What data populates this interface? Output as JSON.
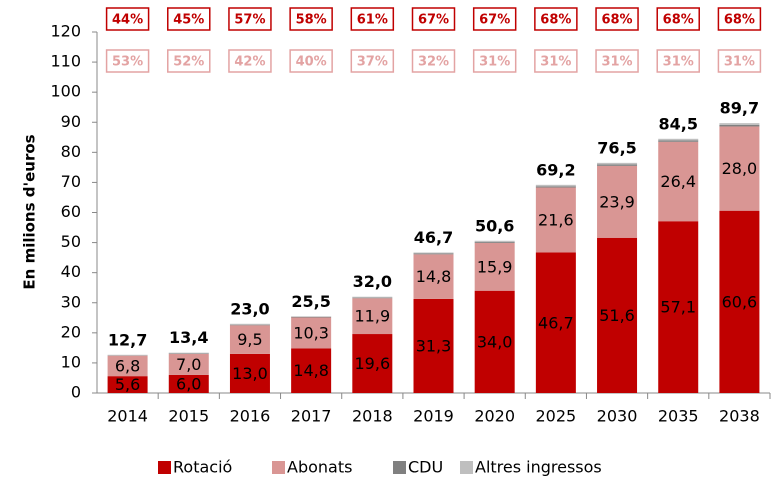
{
  "chart_data": {
    "type": "bar",
    "stacked": true,
    "ylabel": "En milions d'euros",
    "categories": [
      "2014",
      "2015",
      "2016",
      "2017",
      "2018",
      "2019",
      "2020",
      "2025",
      "2030",
      "2035",
      "2038"
    ],
    "series": [
      {
        "name": "Rotació",
        "color": "#c00000",
        "values": [
          5.6,
          6.0,
          13.0,
          14.8,
          19.6,
          31.3,
          34.0,
          46.7,
          51.6,
          57.1,
          60.6
        ],
        "value_labels": [
          "5,6",
          "6,0",
          "13,0",
          "14,8",
          "19,6",
          "31,3",
          "34,0",
          "46,7",
          "51,6",
          "57,1",
          "60,6"
        ]
      },
      {
        "name": "Abonats",
        "color": "#d99694",
        "values": [
          6.8,
          7.0,
          9.5,
          10.3,
          11.9,
          14.8,
          15.9,
          21.6,
          23.9,
          26.4,
          28.0
        ],
        "value_labels": [
          "6,8",
          "7,0",
          "9,5",
          "10,3",
          "11,9",
          "14,8",
          "15,9",
          "21,6",
          "23,9",
          "26,4",
          "28,0"
        ]
      },
      {
        "name": "CDU",
        "color": "#808080",
        "values": [
          0.1,
          0.2,
          0.2,
          0.2,
          0.2,
          0.3,
          0.3,
          0.4,
          0.5,
          0.5,
          0.5
        ]
      },
      {
        "name": "Altres ingressos",
        "color": "#bfbfbf",
        "values": [
          0.2,
          0.2,
          0.3,
          0.2,
          0.3,
          0.3,
          0.4,
          0.5,
          0.5,
          0.5,
          0.6
        ]
      }
    ],
    "totals": [
      12.7,
      13.4,
      23.0,
      25.5,
      32.0,
      46.7,
      50.6,
      69.2,
      76.5,
      84.5,
      89.7
    ],
    "total_labels": [
      "12,7",
      "13,4",
      "23,0",
      "25,5",
      "32,0",
      "46,7",
      "50,6",
      "69,2",
      "76,5",
      "84,5",
      "89,7"
    ],
    "shares": [
      {
        "color": "#c00000",
        "values": [
          44,
          45,
          57,
          58,
          61,
          67,
          67,
          68,
          68,
          68,
          68
        ],
        "value_labels": [
          "44%",
          "45%",
          "57%",
          "58%",
          "61%",
          "67%",
          "67%",
          "68%",
          "68%",
          "68%",
          "68%"
        ]
      },
      {
        "color": "#e3a3a3",
        "values": [
          53,
          52,
          42,
          40,
          37,
          32,
          31,
          31,
          31,
          31,
          31
        ],
        "value_labels": [
          "53%",
          "52%",
          "42%",
          "40%",
          "37%",
          "32%",
          "31%",
          "31%",
          "31%",
          "31%",
          "31%"
        ]
      }
    ],
    "ylim": [
      0,
      120
    ],
    "yticks": [
      0,
      10,
      20,
      30,
      40,
      50,
      60,
      70,
      80,
      90,
      100,
      110,
      120
    ]
  }
}
